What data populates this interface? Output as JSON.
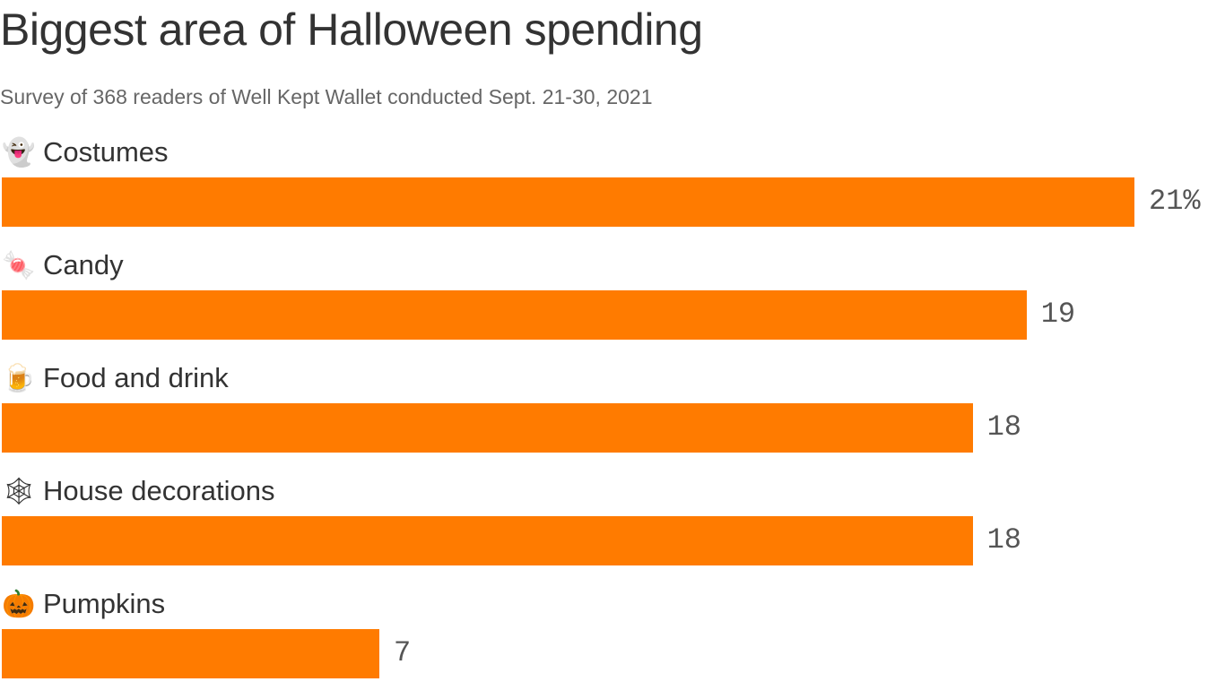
{
  "chart_data": {
    "type": "bar",
    "orientation": "horizontal",
    "title": "Biggest area of Halloween spending",
    "subtitle": "Survey of 368 readers of Well Kept Wallet conducted Sept. 21-30, 2021",
    "categories": [
      "Costumes",
      "Candy",
      "Food and drink",
      "House decorations",
      "Pumpkins"
    ],
    "icons": [
      "ghost-emoji",
      "candy-emoji",
      "beer-mug-emoji",
      "spider-web-emoji",
      "jack-o-lantern-emoji"
    ],
    "emoji": [
      "👻",
      "🍬",
      "🍺",
      "🕸",
      "🎃"
    ],
    "values": [
      21,
      19,
      18,
      18,
      7
    ],
    "value_suffix_first": "%",
    "unit": "percent",
    "xlim": [
      0,
      21
    ],
    "grid": false,
    "legend": "none",
    "bar_color": "#FF7B00"
  }
}
